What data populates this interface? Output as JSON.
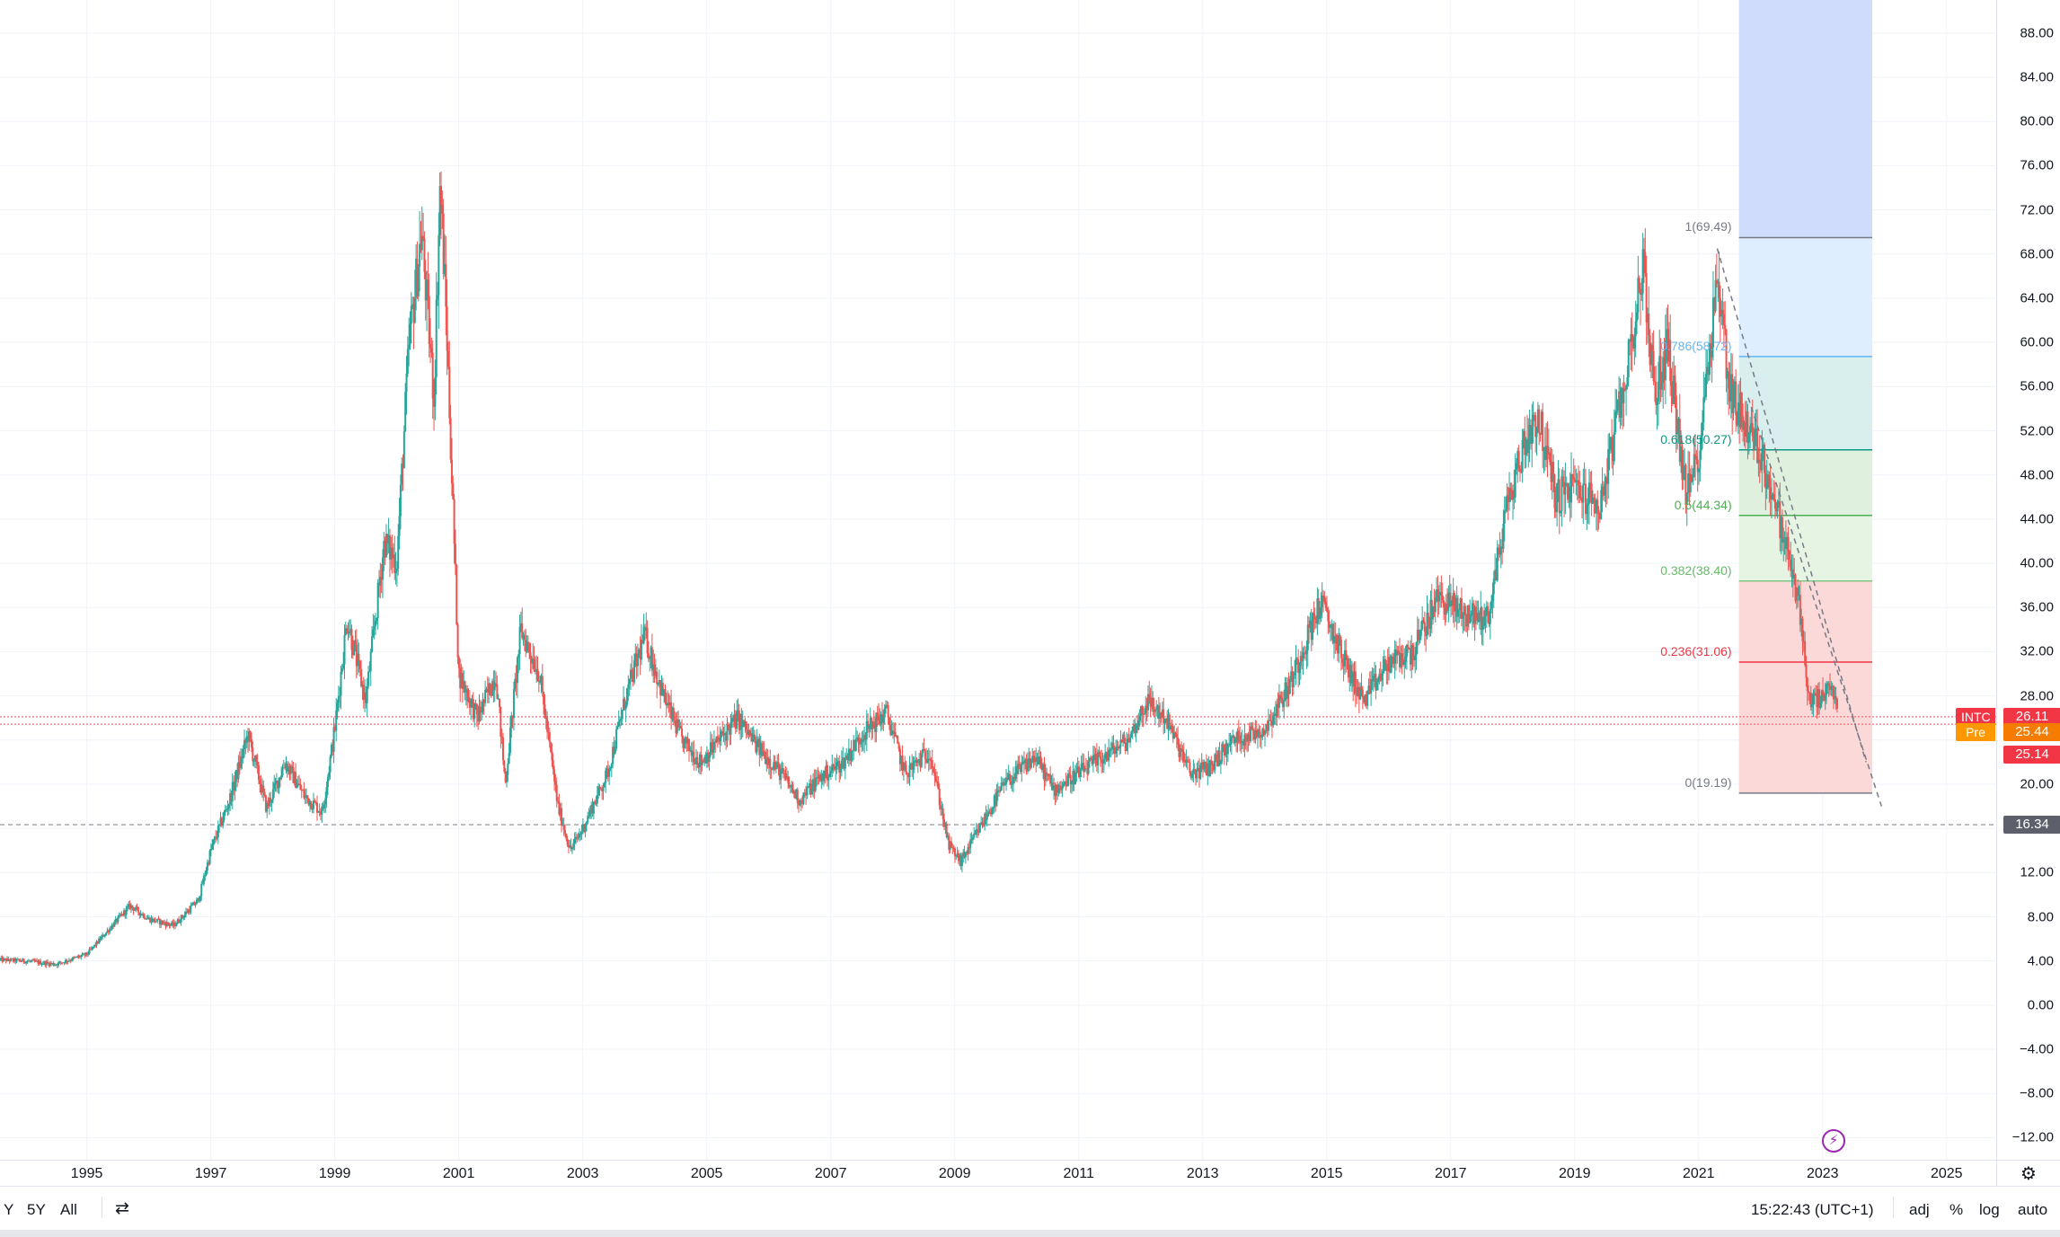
{
  "chart_data": {
    "type": "candlestick",
    "symbol": "INTC",
    "x_range": [
      1993.6,
      2025.8
    ],
    "y_range": [
      -14.0,
      91.0
    ],
    "price_ticks": [
      88,
      84,
      80,
      76,
      72,
      68,
      64,
      60,
      56,
      52,
      48,
      44,
      40,
      36,
      32,
      28,
      24,
      20,
      16,
      12,
      8,
      4,
      0,
      -4,
      -8,
      -12
    ],
    "price_tick_labels": [
      "88.00",
      "84.00",
      "80.00",
      "76.00",
      "72.00",
      "68.00",
      "64.00",
      "60.00",
      "56.00",
      "52.00",
      "48.00",
      "44.00",
      "40.00",
      "36.00",
      "32.00",
      "28.00",
      "",
      "20.00",
      "",
      "12.00",
      "8.00",
      "4.00",
      "0.00",
      "−4.00",
      "−8.00",
      "−12.00"
    ],
    "year_ticks": [
      1995,
      1997,
      1999,
      2001,
      2003,
      2005,
      2007,
      2009,
      2011,
      2013,
      2015,
      2017,
      2019,
      2021,
      2023,
      2025
    ],
    "year_labels": [
      "1995",
      "1997",
      "1999",
      "2001",
      "2003",
      "2005",
      "2007",
      "2009",
      "2011",
      "2013",
      "2015",
      "2017",
      "2019",
      "2021",
      "2023",
      "2025"
    ],
    "price_path": [
      [
        1993.6,
        4.1
      ],
      [
        1994.0,
        4.0
      ],
      [
        1994.5,
        3.7
      ],
      [
        1995.0,
        4.6
      ],
      [
        1995.3,
        6.5
      ],
      [
        1995.7,
        9.0
      ],
      [
        1996.0,
        7.8
      ],
      [
        1996.4,
        7.2
      ],
      [
        1996.8,
        9.5
      ],
      [
        1997.0,
        14.0
      ],
      [
        1997.3,
        18.5
      ],
      [
        1997.6,
        24.5
      ],
      [
        1997.9,
        17.8
      ],
      [
        1998.2,
        22.0
      ],
      [
        1998.5,
        19.0
      ],
      [
        1998.8,
        17.5
      ],
      [
        1999.0,
        25.0
      ],
      [
        1999.2,
        35.0
      ],
      [
        1999.5,
        27.5
      ],
      [
        1999.8,
        42.0
      ],
      [
        2000.0,
        40.0
      ],
      [
        2000.2,
        60.0
      ],
      [
        2000.4,
        70.0
      ],
      [
        2000.6,
        55.0
      ],
      [
        2000.7,
        74.5
      ],
      [
        2000.8,
        62.0
      ],
      [
        2000.9,
        46.0
      ],
      [
        2001.0,
        30.0
      ],
      [
        2001.3,
        26.0
      ],
      [
        2001.6,
        30.0
      ],
      [
        2001.75,
        20.0
      ],
      [
        2002.0,
        34.0
      ],
      [
        2002.3,
        30.0
      ],
      [
        2002.6,
        18.0
      ],
      [
        2002.8,
        14.0
      ],
      [
        2003.0,
        16.0
      ],
      [
        2003.4,
        21.0
      ],
      [
        2003.7,
        28.0
      ],
      [
        2004.0,
        33.5
      ],
      [
        2004.3,
        28.0
      ],
      [
        2004.6,
        24.0
      ],
      [
        2004.9,
        22.0
      ],
      [
        2005.2,
        24.0
      ],
      [
        2005.5,
        26.0
      ],
      [
        2005.8,
        23.5
      ],
      [
        2006.2,
        21.0
      ],
      [
        2006.5,
        18.5
      ],
      [
        2006.8,
        20.5
      ],
      [
        2007.2,
        22.0
      ],
      [
        2007.5,
        24.5
      ],
      [
        2007.9,
        26.5
      ],
      [
        2008.2,
        21.0
      ],
      [
        2008.6,
        23.0
      ],
      [
        2008.9,
        14.5
      ],
      [
        2009.1,
        13.0
      ],
      [
        2009.4,
        16.0
      ],
      [
        2009.8,
        20.0
      ],
      [
        2010.3,
        22.5
      ],
      [
        2010.6,
        19.5
      ],
      [
        2011.0,
        21.0
      ],
      [
        2011.4,
        22.5
      ],
      [
        2011.8,
        24.0
      ],
      [
        2012.1,
        27.5
      ],
      [
        2012.4,
        26.0
      ],
      [
        2012.8,
        21.0
      ],
      [
        2013.1,
        21.5
      ],
      [
        2013.5,
        24.0
      ],
      [
        2014.0,
        25.0
      ],
      [
        2014.4,
        29.0
      ],
      [
        2014.9,
        36.5
      ],
      [
        2015.3,
        31.0
      ],
      [
        2015.6,
        27.5
      ],
      [
        2016.0,
        31.0
      ],
      [
        2016.4,
        32.0
      ],
      [
        2016.8,
        37.0
      ],
      [
        2017.2,
        35.5
      ],
      [
        2017.6,
        35.0
      ],
      [
        2017.9,
        45.0
      ],
      [
        2018.2,
        51.0
      ],
      [
        2018.4,
        53.5
      ],
      [
        2018.7,
        46.0
      ],
      [
        2019.0,
        47.0
      ],
      [
        2019.4,
        45.0
      ],
      [
        2019.8,
        56.0
      ],
      [
        2020.1,
        67.0
      ],
      [
        2020.3,
        55.0
      ],
      [
        2020.5,
        60.0
      ],
      [
        2020.8,
        46.0
      ],
      [
        2021.0,
        50.0
      ],
      [
        2021.2,
        61.0
      ],
      [
        2021.3,
        66.0
      ],
      [
        2021.5,
        56.0
      ],
      [
        2021.8,
        52.0
      ],
      [
        2022.0,
        50.0
      ],
      [
        2022.3,
        44.0
      ],
      [
        2022.6,
        37.0
      ],
      [
        2022.8,
        27.0
      ],
      [
        2023.0,
        28.0
      ],
      [
        2023.15,
        28.5
      ],
      [
        2023.25,
        26.5
      ]
    ],
    "reference_lines": [
      {
        "price": 26.11,
        "color": "#f7525f"
      },
      {
        "price": 25.44,
        "color": "#f7525f"
      },
      {
        "price": 16.34,
        "color": "#787b86"
      }
    ],
    "fib_retracement": {
      "x_start": 2021.65,
      "x_end": 2023.8,
      "levels": [
        {
          "label": "1(69.49)",
          "ratio": 1,
          "price": 69.49,
          "fill": "#e0e0e0",
          "line": "#787b86",
          "text_color": "#787b86"
        },
        {
          "label": "0.786(58.72)",
          "ratio": 0.786,
          "price": 58.72,
          "fill": "#dfeefe",
          "line": "#64b5f6",
          "text_color": "#64b5f6"
        },
        {
          "label": "0.618(50.27)",
          "ratio": 0.618,
          "price": 50.27,
          "fill": "#d8efed",
          "line": "#089981",
          "text_color": "#089981"
        },
        {
          "label": "0.5(44.34)",
          "ratio": 0.5,
          "price": 44.34,
          "fill": "#dff0df",
          "line": "#4caf50",
          "text_color": "#4caf50"
        },
        {
          "label": "0.382(38.40)",
          "ratio": 0.382,
          "price": 38.4,
          "fill": "#e6f4e4",
          "line": "#81c784",
          "text_color": "#66bb6a"
        },
        {
          "label": "0.236(31.06)",
          "ratio": 0.236,
          "price": 31.06,
          "fill": "#fbd9d9",
          "line": "#f23645",
          "text_color": "#f23645"
        },
        {
          "label": "0(19.19)",
          "ratio": 0,
          "price": 19.19,
          "fill": "",
          "line": "#787b86",
          "text_color": "#787b86"
        }
      ],
      "extension_fill": "#cfdcfb"
    },
    "trend_lines": [
      {
        "from": [
          2021.3,
          68.5
        ],
        "to": [
          2023.7,
          22.0
        ]
      },
      {
        "from": [
          2021.8,
          55.0
        ],
        "to": [
          2023.95,
          18.0
        ]
      }
    ]
  },
  "price_badges": [
    {
      "value": "26.11",
      "color": "#f23645",
      "price": 26.11,
      "tag": "INTC",
      "tag_color": "#f23645"
    },
    {
      "value": "25.44",
      "color": "#f57c00",
      "price": 24.7,
      "tag": "Pre",
      "tag_color": "#ff9800"
    },
    {
      "value": "25.14",
      "color": "#f23645",
      "price": 22.7,
      "tag": "",
      "tag_color": ""
    },
    {
      "value": "16.34",
      "color": "#5d606b",
      "price": 16.34,
      "tag": "",
      "tag_color": ""
    }
  ],
  "bottom_bar": {
    "range_y": "Y",
    "range_5y": "5Y",
    "range_all": "All",
    "clock": "15:22:43 (UTC+1)",
    "adj": "adj",
    "percent": "%",
    "log": "log",
    "auto": "auto"
  },
  "icons": {
    "calendar_goto": "calendar-goto-icon",
    "settings": "gear-icon",
    "bolt": "lightning-icon"
  },
  "colors": {
    "up": "#26a69a",
    "down": "#ef5350",
    "grid": "#f0f3fa"
  }
}
